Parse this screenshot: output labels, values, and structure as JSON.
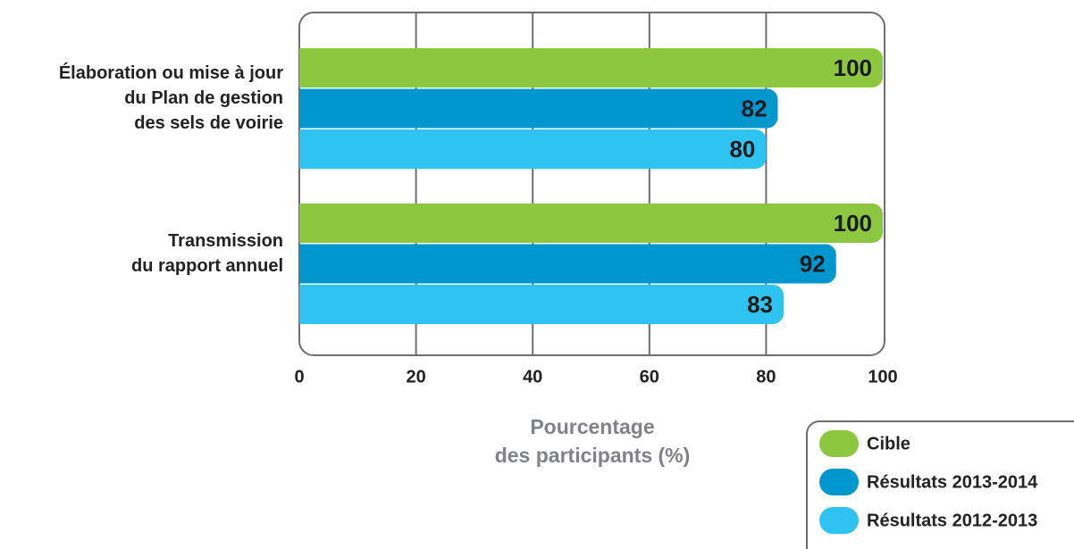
{
  "chart_data": {
    "type": "bar",
    "orientation": "horizontal",
    "categories": [
      "Élaboration ou mise à jour\ndu Plan de gestion\ndes sels de voirie",
      "Transmission\ndu rapport annuel"
    ],
    "series": [
      {
        "name": "Cible",
        "color": "#8dc63f",
        "values": [
          100,
          100
        ]
      },
      {
        "name": "Résultats 2013-2014",
        "color": "#0097cf",
        "values": [
          82,
          92
        ]
      },
      {
        "name": "Résultats 2012-2013",
        "color": "#2ec3f1",
        "values": [
          80,
          83
        ]
      }
    ],
    "xlabel": "Pourcentage\ndes participants (%)",
    "xlim": [
      0,
      100
    ],
    "xticks": [
      0,
      20,
      40,
      60,
      80,
      100
    ],
    "grid": true,
    "legend": "lower right"
  }
}
